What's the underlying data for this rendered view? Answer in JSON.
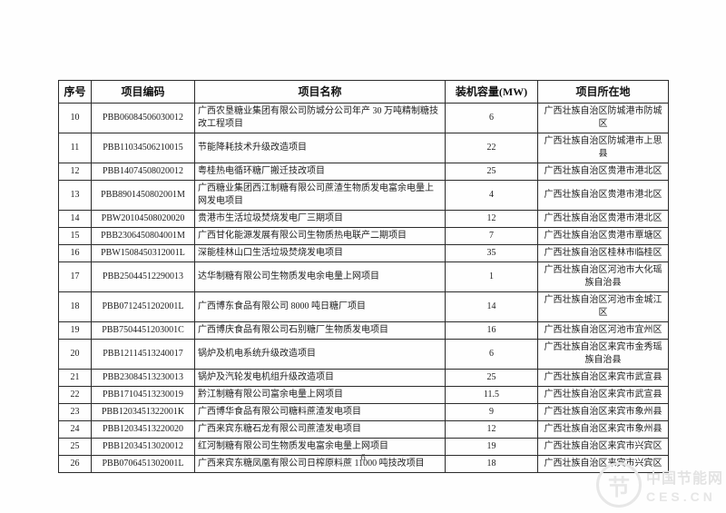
{
  "page": {
    "number": "6"
  },
  "watermark": {
    "name": "中国节能网",
    "domain": "CES.CN"
  },
  "table": {
    "headers": [
      "序号",
      "项目编码",
      "项目名称",
      "装机容量(MW)",
      "项目所在地"
    ],
    "rows": [
      {
        "seq": "10",
        "code": "PBB06084506030012",
        "name": "广西农垦糖业集团有限公司防城分公司年产 30 万吨精制糖技改工程项目",
        "capacity": "6",
        "location": "广西壮族自治区防城港市防城区"
      },
      {
        "seq": "11",
        "code": "PBB11034506210015",
        "name": "节能降耗技术升级改造项目",
        "capacity": "22",
        "location": "广西壮族自治区防城港市上思县"
      },
      {
        "seq": "12",
        "code": "PBB14074508020012",
        "name": "粤桂热电循环糖厂搬迁技改项目",
        "capacity": "25",
        "location": "广西壮族自治区贵港市港北区"
      },
      {
        "seq": "13",
        "code": "PBB8901450802001M",
        "name": "广西糖业集团西江制糖有限公司蔗渣生物质发电富余电量上网发电项目",
        "capacity": "4",
        "location": "广西壮族自治区贵港市港北区"
      },
      {
        "seq": "14",
        "code": "PBW20104508020020",
        "name": "贵港市生活垃圾焚烧发电厂三期项目",
        "capacity": "12",
        "location": "广西壮族自治区贵港市港北区"
      },
      {
        "seq": "15",
        "code": "PBB2306450804001M",
        "name": "广西甘化能源发展有限公司生物质热电联产二期项目",
        "capacity": "7",
        "location": "广西壮族自治区贵港市覃塘区"
      },
      {
        "seq": "16",
        "code": "PBW1508450312001L",
        "name": "深能桂林山口生活垃圾焚烧发电项目",
        "capacity": "35",
        "location": "广西壮族自治区桂林市临桂区"
      },
      {
        "seq": "17",
        "code": "PBB25044512290013",
        "name": "达华制糖有限公司生物质发电余电量上网项目",
        "capacity": "1",
        "location": "广西壮族自治区河池市大化瑶族自治县"
      },
      {
        "seq": "18",
        "code": "PBB0712451202001L",
        "name": "广西博东食品有限公司 8000 吨日糖厂项目",
        "capacity": "14",
        "location": "广西壮族自治区河池市金城江区"
      },
      {
        "seq": "19",
        "code": "PBB7504451203001C",
        "name": "广西博庆食品有限公司石别糖厂生物质发电项目",
        "capacity": "16",
        "location": "广西壮族自治区河池市宜州区"
      },
      {
        "seq": "20",
        "code": "PBB12114513240017",
        "name": "锅炉及机电系统升级改造项目",
        "capacity": "6",
        "location": "广西壮族自治区来宾市金秀瑶族自治县"
      },
      {
        "seq": "21",
        "code": "PBB23084513230013",
        "name": "锅炉及汽轮发电机组升级改造项目",
        "capacity": "25",
        "location": "广西壮族自治区来宾市武宣县"
      },
      {
        "seq": "22",
        "code": "PBB17104513230019",
        "name": "黔江制糖有限公司富余电量上网项目",
        "capacity": "11.5",
        "location": "广西壮族自治区来宾市武宣县"
      },
      {
        "seq": "23",
        "code": "PBB1203451322001K",
        "name": "广西博华食品有限公司糖料蔗渣发电项目",
        "capacity": "9",
        "location": "广西壮族自治区来宾市象州县"
      },
      {
        "seq": "24",
        "code": "PBB12034513220020",
        "name": "广西来宾东糖石龙有限公司蔗渣发电项目",
        "capacity": "12",
        "location": "广西壮族自治区来宾市象州县"
      },
      {
        "seq": "25",
        "code": "PBB12034513020012",
        "name": "红河制糖有限公司生物质发电富余电量上网项目",
        "capacity": "19",
        "location": "广西壮族自治区来宾市兴宾区"
      },
      {
        "seq": "26",
        "code": "PBB0706451302001L",
        "name": "广西来宾东糖凤凰有限公司日榨原料蔗 11000 吨技改项目",
        "capacity": "18",
        "location": "广西壮族自治区来宾市兴宾区"
      }
    ]
  }
}
